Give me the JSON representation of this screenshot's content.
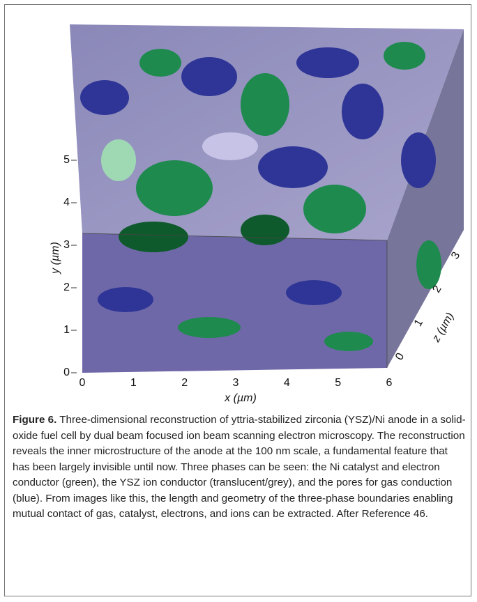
{
  "figure": {
    "y_axis": {
      "label": "y (µm)",
      "ticks": [
        "0",
        "1",
        "2",
        "3",
        "4",
        "5"
      ]
    },
    "x_axis": {
      "label": "x (µm)",
      "ticks": [
        "0",
        "1",
        "2",
        "3",
        "4",
        "5",
        "6"
      ]
    },
    "z_axis": {
      "label": "z (µm)",
      "ticks": [
        "0",
        "1",
        "2",
        "3"
      ]
    },
    "caption": {
      "label": "Figure 6.",
      "text": "Three-dimensional reconstruction of yttria-stabilized zirconia (YSZ)/Ni anode in a solid-oxide fuel cell by dual beam focused ion beam scanning electron microscopy. The reconstruction reveals the inner microstructure of the anode at the 100 nm scale, a fundamental feature that has been largely invisible until now. Three phases can be seen: the Ni catalyst and electron conductor (green), the YSZ ion conductor (translucent/grey), and the pores for gas conduction (blue). From images like this, the length and geometry of the three-phase boundaries enabling mutual contact of gas, catalyst, electrons, and ions can be extracted. After Reference 46."
    }
  }
}
